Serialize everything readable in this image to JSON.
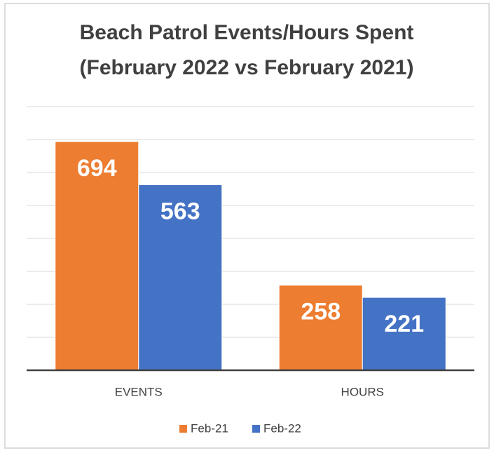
{
  "chart_data": {
    "type": "bar",
    "title": "Beach Patrol Events/Hours Spent",
    "subtitle": "(February 2022 vs February 2021)",
    "categories": [
      "EVENTS",
      "HOURS"
    ],
    "series": [
      {
        "name": "Feb-21",
        "color": "#ed7d31",
        "values": [
          694,
          258
        ]
      },
      {
        "name": "Feb-22",
        "color": "#4472c4",
        "values": [
          563,
          221
        ]
      }
    ],
    "ylim": [
      0,
      800
    ],
    "yticks": [
      0,
      100,
      200,
      300,
      400,
      500,
      600,
      700,
      800
    ],
    "grid": true,
    "legend": "bottom"
  }
}
